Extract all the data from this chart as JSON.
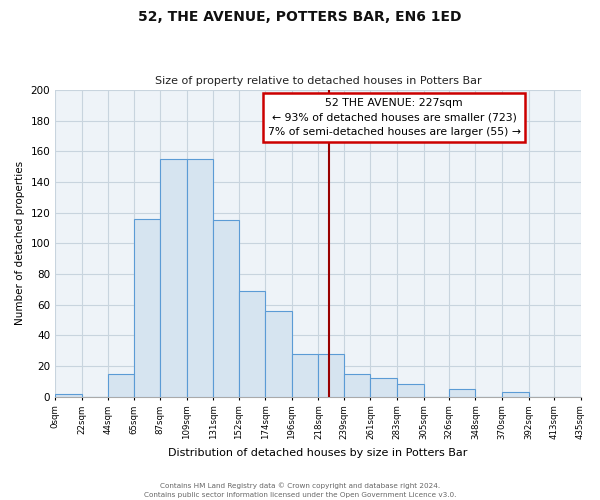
{
  "title": "52, THE AVENUE, POTTERS BAR, EN6 1ED",
  "subtitle": "Size of property relative to detached houses in Potters Bar",
  "xlabel": "Distribution of detached houses by size in Potters Bar",
  "ylabel": "Number of detached properties",
  "bar_color": "#d6e4f0",
  "bar_edgecolor": "#5b9bd5",
  "background_color": "#ffffff",
  "plot_bg_color": "#eef3f8",
  "grid_color": "#c8d4de",
  "bin_edges": [
    0,
    22,
    44,
    65,
    87,
    109,
    131,
    152,
    174,
    196,
    218,
    239,
    261,
    283,
    305,
    326,
    348,
    370,
    392,
    413,
    435
  ],
  "bin_labels": [
    "0sqm",
    "22sqm",
    "44sqm",
    "65sqm",
    "87sqm",
    "109sqm",
    "131sqm",
    "152sqm",
    "174sqm",
    "196sqm",
    "218sqm",
    "239sqm",
    "261sqm",
    "283sqm",
    "305sqm",
    "326sqm",
    "348sqm",
    "370sqm",
    "392sqm",
    "413sqm",
    "435sqm"
  ],
  "counts": [
    2,
    0,
    15,
    116,
    155,
    155,
    115,
    69,
    56,
    28,
    28,
    15,
    12,
    8,
    0,
    5,
    0,
    3,
    0,
    0
  ],
  "ylim": [
    0,
    200
  ],
  "yticks": [
    0,
    20,
    40,
    60,
    80,
    100,
    120,
    140,
    160,
    180,
    200
  ],
  "vline_x": 227,
  "vline_color": "#990000",
  "annotation_title": "52 THE AVENUE: 227sqm",
  "annotation_line1": "← 93% of detached houses are smaller (723)",
  "annotation_line2": "7% of semi-detached houses are larger (55) →",
  "annotation_box_facecolor": "#ffffff",
  "annotation_box_edgecolor": "#cc0000",
  "footer1": "Contains HM Land Registry data © Crown copyright and database right 2024.",
  "footer2": "Contains public sector information licensed under the Open Government Licence v3.0."
}
